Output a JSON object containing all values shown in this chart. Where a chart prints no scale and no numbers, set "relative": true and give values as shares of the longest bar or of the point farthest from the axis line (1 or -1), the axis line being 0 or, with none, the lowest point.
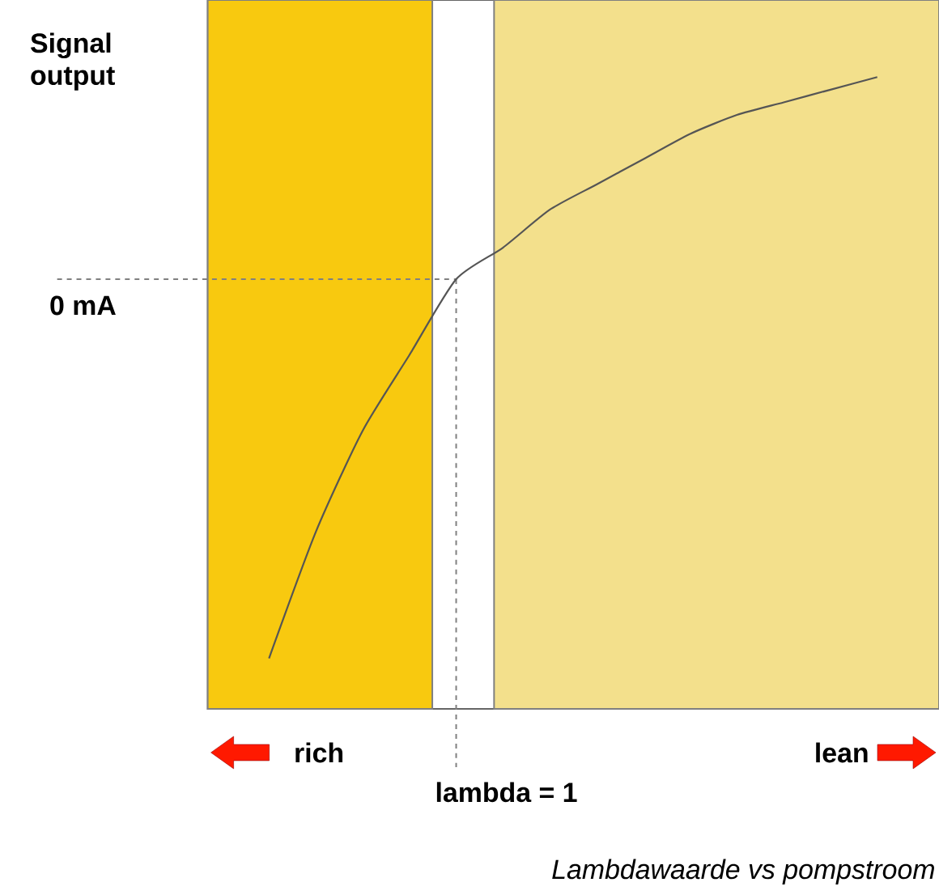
{
  "chart_data": {
    "type": "line",
    "relative": true,
    "ylabel": "Signal output",
    "categories": [
      null,
      null,
      null,
      null,
      null,
      null,
      null,
      null,
      null,
      null,
      null,
      null,
      null,
      null
    ],
    "values": [
      0.08,
      0.28,
      0.44,
      0.56,
      0.68,
      0.73,
      0.79,
      0.83,
      0.87,
      0.91,
      0.94,
      0.96,
      0.98,
      1.0
    ],
    "color": "#555555",
    "ref_lines": [
      {
        "axis": "y",
        "value": 0.68,
        "label": "0 mA",
        "line_style": "dashed"
      }
    ],
    "annotations": [
      "rich",
      "lean",
      "lambda = 1",
      "Lambdawaarde vs pompstroom"
    ]
  }
}
